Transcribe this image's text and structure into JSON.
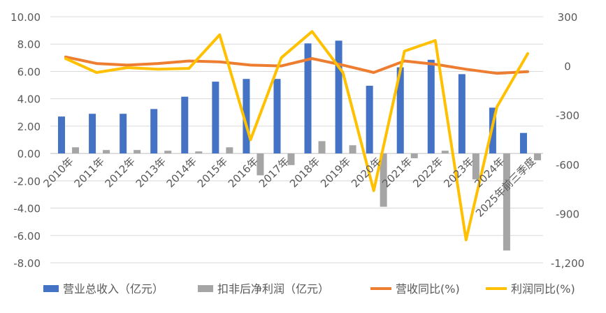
{
  "chart_data": {
    "type": "bar+line",
    "title": "",
    "categories": [
      "2010年",
      "2011年",
      "2012年",
      "2013年",
      "2014年",
      "2015年",
      "2016年",
      "2017年",
      "2018年",
      "2019年",
      "2020年",
      "2021年",
      "2022年",
      "2023年",
      "2024年",
      "2025年前三季度"
    ],
    "y_left": {
      "min": -8,
      "max": 10,
      "step": 2,
      "ticks": [
        "-8.00",
        "-6.00",
        "-4.00",
        "-2.00",
        "0.00",
        "2.00",
        "4.00",
        "6.00",
        "8.00",
        "10.00"
      ]
    },
    "y_right": {
      "min": -1200,
      "max": 300,
      "step": 300,
      "ticks": [
        "-1,200",
        "-900",
        "-600",
        "-300",
        "0",
        "300"
      ]
    },
    "grid": true,
    "legend_position": "bottom",
    "series": [
      {
        "name": "营业总收入（亿元）",
        "kind": "bar",
        "axis": "left",
        "color": "#4472C4",
        "values": [
          2.7,
          2.9,
          2.9,
          3.25,
          4.15,
          5.25,
          5.45,
          5.45,
          8.05,
          8.25,
          4.95,
          6.3,
          6.85,
          5.8,
          3.35,
          1.5
        ]
      },
      {
        "name": "扣非后净利润（亿元）",
        "kind": "bar",
        "axis": "left",
        "color": "#A5A5A5",
        "values": [
          0.45,
          0.25,
          0.25,
          0.2,
          0.15,
          0.45,
          -1.6,
          -0.85,
          0.9,
          0.6,
          -3.9,
          -0.35,
          0.2,
          -1.9,
          -7.1,
          -0.5
        ]
      },
      {
        "name": "营收同比(%)",
        "kind": "line",
        "axis": "right",
        "color": "#ED7D31",
        "values": [
          55,
          15,
          5,
          15,
          30,
          25,
          5,
          0,
          45,
          5,
          -40,
          30,
          10,
          -20,
          -45,
          -35
        ]
      },
      {
        "name": "利润同比(%)",
        "kind": "line",
        "axis": "right",
        "color": "#FFC000",
        "values": [
          45,
          -40,
          -10,
          -20,
          -15,
          190,
          -450,
          50,
          210,
          -40,
          -760,
          90,
          155,
          -1060,
          -250,
          75
        ]
      }
    ]
  }
}
